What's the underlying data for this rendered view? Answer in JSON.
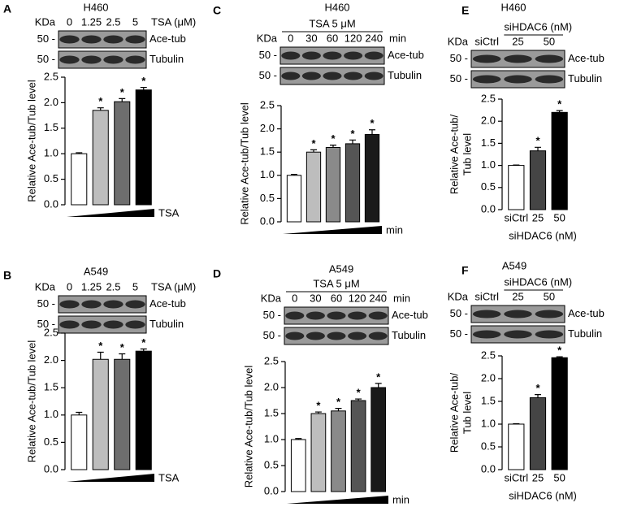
{
  "chart_data": [
    {
      "type": "bar",
      "panel": "A",
      "title": "H460",
      "blot": {
        "kda": "KDa",
        "lanes": [
          "0",
          "1.25",
          "2.5",
          "5"
        ],
        "lane_unit": "TSA (μM)",
        "markers": [
          "50 -",
          "50 -"
        ],
        "bands": [
          "Ace-tub",
          "Tubulin"
        ]
      },
      "y_label": [
        "Relative Ace-tub/Tub level"
      ],
      "x_label": "TSA",
      "categories": [
        null,
        null,
        null,
        null
      ],
      "values": [
        1.0,
        1.85,
        2.02,
        2.25
      ],
      "errors": [
        0.02,
        0.05,
        0.06,
        0.05
      ],
      "significance": [
        null,
        "*",
        "*",
        "*"
      ],
      "colors": [
        "#ffffff",
        "#bdbdbd",
        "#6e6e6e",
        "#000000"
      ],
      "ylim": [
        0,
        2.5
      ],
      "yticks": [
        {
          "value": 0,
          "label": "0.0"
        },
        0.5,
        {
          "value": 1,
          "label": "1.0"
        },
        1.5,
        {
          "value": 2,
          "label": "2.0"
        },
        2.5
      ]
    },
    {
      "type": "bar",
      "panel": "B",
      "title": "A549",
      "blot": {
        "kda": "KDa",
        "lanes": [
          "0",
          "1.25",
          "2.5",
          "5"
        ],
        "lane_unit": "TSA (μM)",
        "markers": [
          "50 -",
          "50 -"
        ],
        "bands": [
          "Ace-tub",
          "Tubulin"
        ]
      },
      "y_label": [
        "Relative Ace-tub/Tub level"
      ],
      "x_label": "TSA",
      "categories": [
        null,
        null,
        null,
        null
      ],
      "values": [
        1.0,
        2.02,
        2.02,
        2.17
      ],
      "errors": [
        0.05,
        0.13,
        0.1,
        0.04
      ],
      "significance": [
        null,
        "*",
        "*",
        "*"
      ],
      "colors": [
        "#ffffff",
        "#bdbdbd",
        "#6e6e6e",
        "#000000"
      ],
      "ylim": [
        0,
        2.5
      ],
      "yticks": [
        {
          "value": 0,
          "label": "0.0"
        },
        0.5,
        {
          "value": 1,
          "label": "1.0"
        },
        1.5,
        {
          "value": 2,
          "label": "2.0"
        },
        2.5
      ]
    },
    {
      "type": "bar",
      "panel": "C",
      "title": "H460",
      "blot": {
        "kda": "KDa",
        "treatment_title": "TSA 5 μM",
        "lanes": [
          "0",
          "30",
          "60",
          "120",
          "240"
        ],
        "lane_unit": "min",
        "markers": [
          "50 -",
          "50 -"
        ],
        "bands": [
          "Ace-tub",
          "Tubulin"
        ]
      },
      "y_label": [
        "Relative Ace-tub/Tub level"
      ],
      "x_label": "min",
      "categories": [
        null,
        null,
        null,
        null,
        null
      ],
      "values": [
        1.0,
        1.5,
        1.6,
        1.68,
        1.88
      ],
      "errors": [
        0.02,
        0.05,
        0.05,
        0.08,
        0.1
      ],
      "significance": [
        null,
        "*",
        "*",
        "*",
        "*"
      ],
      "colors": [
        "#ffffff",
        "#bdbdbd",
        "#8a8a8a",
        "#555555",
        "#1a1a1a"
      ],
      "ylim": [
        0,
        2.5
      ],
      "yticks": [
        {
          "value": 0,
          "label": "0.0"
        },
        0.5,
        {
          "value": 1,
          "label": "1.0"
        },
        1.5,
        {
          "value": 2,
          "label": "2.0"
        },
        2.5
      ]
    },
    {
      "type": "bar",
      "panel": "D",
      "title": "A549",
      "blot": {
        "kda": "KDa",
        "treatment_title": "TSA 5 μM",
        "lanes": [
          "0",
          "30",
          "60",
          "120",
          "240"
        ],
        "lane_unit": "min",
        "markers": [
          "50 -",
          "50 -"
        ],
        "bands": [
          "Ace-tub",
          "Tubulin"
        ]
      },
      "y_label": [
        "Relative Ace-tub/Tub level"
      ],
      "x_label": "min",
      "categories": [
        null,
        null,
        null,
        null,
        null
      ],
      "values": [
        1.0,
        1.5,
        1.55,
        1.75,
        2.0
      ],
      "errors": [
        0.02,
        0.03,
        0.05,
        0.03,
        0.08
      ],
      "significance": [
        null,
        "*",
        "*",
        "*",
        "*"
      ],
      "colors": [
        "#ffffff",
        "#bdbdbd",
        "#8a8a8a",
        "#555555",
        "#1a1a1a"
      ],
      "ylim": [
        0,
        2.5
      ],
      "yticks": [
        {
          "value": 0,
          "label": "0.0"
        },
        0.5,
        {
          "value": 1,
          "label": "1.0"
        },
        1.5,
        {
          "value": 2,
          "label": "2.0"
        },
        2.5
      ]
    },
    {
      "type": "bar",
      "panel": "E",
      "title": "H460",
      "blot": {
        "kda": "KDa",
        "treatment_title": "siHDAC6 (nM)",
        "lanes": [
          "siCtrl",
          "25",
          "50"
        ],
        "markers": [
          "50 -",
          "50 -"
        ],
        "bands": [
          "Ace-tub",
          "Tubulin"
        ]
      },
      "y_label": [
        "Relative Ace-tub/",
        "Tub level"
      ],
      "x_label": "siHDAC6 (nM)",
      "categories": [
        "siCtrl",
        "25",
        "50"
      ],
      "values": [
        1.0,
        1.33,
        2.2
      ],
      "errors": [
        0.01,
        0.08,
        0.04
      ],
      "significance": [
        null,
        "*",
        "*"
      ],
      "colors": [
        "#ffffff",
        "#454545",
        "#000000"
      ],
      "ylim": [
        0,
        2.5
      ],
      "yticks": [
        {
          "value": 0,
          "label": "0.0"
        },
        0.5,
        {
          "value": 1,
          "label": "1.0"
        },
        1.5,
        {
          "value": 2,
          "label": "2.0"
        },
        2.5
      ]
    },
    {
      "type": "bar",
      "panel": "F",
      "title": "A549",
      "blot": {
        "kda": "KDa",
        "treatment_title": "siHDAC6 (nM)",
        "lanes": [
          "siCtrl",
          "25",
          "50"
        ],
        "markers": [
          "50 -",
          "50 -"
        ],
        "bands": [
          "Ace-tub",
          "Tubulin"
        ]
      },
      "y_label": [
        "Relative Ace-tub/",
        "Tub level"
      ],
      "x_label": "siHDAC6 (nM)",
      "categories": [
        "siCtrl",
        "25",
        "50"
      ],
      "values": [
        1.0,
        1.58,
        2.46
      ],
      "errors": [
        0.01,
        0.07,
        0.02
      ],
      "significance": [
        null,
        "*",
        "*"
      ],
      "colors": [
        "#ffffff",
        "#454545",
        "#000000"
      ],
      "ylim": [
        0,
        2.5
      ],
      "yticks": [
        {
          "value": 0,
          "label": "0.0"
        },
        0.5,
        {
          "value": 1,
          "label": "1.0"
        },
        1.5,
        {
          "value": 2,
          "label": "2.0"
        },
        2.5
      ]
    }
  ]
}
